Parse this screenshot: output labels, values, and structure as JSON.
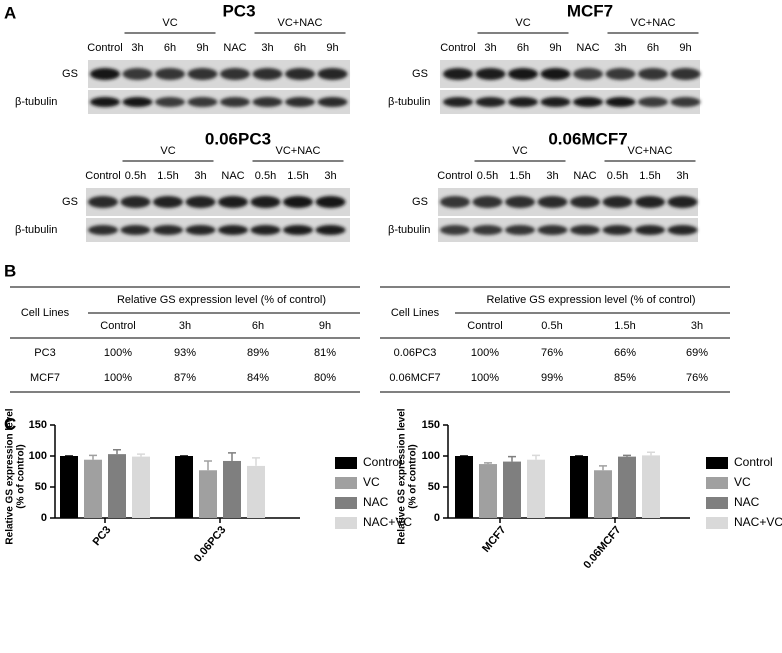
{
  "panel_labels": [
    "A",
    "B",
    "C"
  ],
  "blots": [
    {
      "title": "PC3",
      "groups": [
        "VC",
        "VC+NAC"
      ],
      "lanes": [
        "Control",
        "3h",
        "6h",
        "9h",
        "NAC",
        "3h",
        "6h",
        "9h"
      ],
      "rows": [
        "GS",
        "β-tubulin"
      ]
    },
    {
      "title": "MCF7",
      "groups": [
        "VC",
        "VC+NAC"
      ],
      "lanes": [
        "Control",
        "3h",
        "6h",
        "9h",
        "NAC",
        "3h",
        "6h",
        "9h"
      ],
      "rows": [
        "GS",
        "β-tubulin"
      ]
    },
    {
      "title": "0.06PC3",
      "groups": [
        "VC",
        "VC+NAC"
      ],
      "lanes": [
        "Control",
        "0.5h",
        "1.5h",
        "3h",
        "NAC",
        "0.5h",
        "1.5h",
        "3h"
      ],
      "rows": [
        "GS",
        "β-tubulin"
      ]
    },
    {
      "title": "0.06MCF7",
      "groups": [
        "VC",
        "VC+NAC"
      ],
      "lanes": [
        "Control",
        "0.5h",
        "1.5h",
        "3h",
        "NAC",
        "0.5h",
        "1.5h",
        "3h"
      ],
      "rows": [
        "GS",
        "β-tubulin"
      ]
    }
  ],
  "tables": [
    {
      "corner": "Cell Lines",
      "span_header": "Relative GS expression level (% of control)",
      "columns": [
        "Control",
        "3h",
        "6h",
        "9h"
      ],
      "rows": [
        [
          "PC3",
          "100%",
          "93%",
          "89%",
          "81%"
        ],
        [
          "MCF7",
          "100%",
          "87%",
          "84%",
          "80%"
        ]
      ]
    },
    {
      "corner": "Cell Lines",
      "span_header": "Relative GS expression level (% of control)",
      "columns": [
        "Control",
        "0.5h",
        "1.5h",
        "3h"
      ],
      "rows": [
        [
          "0.06PC3",
          "100%",
          "76%",
          "66%",
          "69%"
        ],
        [
          "0.06MCF7",
          "100%",
          "99%",
          "85%",
          "76%"
        ]
      ]
    }
  ],
  "chart_data": [
    {
      "type": "bar",
      "y_label": [
        "Relative GS expression level",
        "(% of control)"
      ],
      "categories": [
        "PC3",
        "0.06PC3"
      ],
      "ylim": [
        0,
        150
      ],
      "yticks": [
        0,
        50,
        100,
        150
      ],
      "legend": "right",
      "series": [
        {
          "name": "Control",
          "color": "#000000",
          "values": [
            100,
            100
          ],
          "error": [
            0,
            0
          ]
        },
        {
          "name": "VC",
          "color": "#a0a0a0",
          "values": [
            94,
            77
          ],
          "error": [
            7,
            15
          ]
        },
        {
          "name": "NAC",
          "color": "#7f7f7f",
          "values": [
            103,
            92
          ],
          "error": [
            7,
            13
          ]
        },
        {
          "name": "NAC+VC",
          "color": "#d9d9d9",
          "values": [
            99,
            84
          ],
          "error": [
            4,
            13
          ]
        }
      ]
    },
    {
      "type": "bar",
      "y_label": [
        "Relative GS expression level",
        "(% of control)"
      ],
      "categories": [
        "MCF7",
        "0.06MCF7"
      ],
      "ylim": [
        0,
        150
      ],
      "yticks": [
        0,
        50,
        100,
        150
      ],
      "legend": "right",
      "series": [
        {
          "name": "Control",
          "color": "#000000",
          "values": [
            100,
            100
          ],
          "error": [
            0,
            0
          ]
        },
        {
          "name": "VC",
          "color": "#a0a0a0",
          "values": [
            87,
            77
          ],
          "error": [
            2,
            7
          ]
        },
        {
          "name": "NAC",
          "color": "#7f7f7f",
          "values": [
            91,
            99
          ],
          "error": [
            8,
            2
          ]
        },
        {
          "name": "NAC+VC",
          "color": "#d9d9d9",
          "values": [
            94,
            101
          ],
          "error": [
            7,
            5
          ]
        }
      ]
    }
  ]
}
